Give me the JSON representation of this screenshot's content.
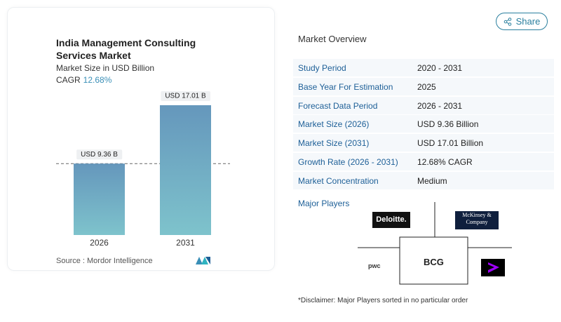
{
  "share_button": "Share",
  "chart_data": {
    "type": "bar",
    "title": "India Management Consulting Services Market",
    "subtitle": "Market Size in USD Billion",
    "cagr_label": "CAGR",
    "cagr_value": "12.68%",
    "categories": [
      "2026",
      "2031"
    ],
    "values": [
      9.36,
      17.01
    ],
    "value_labels": [
      "USD 9.36 B",
      "USD 17.01 B"
    ],
    "source": "Source : Mordor Intelligence"
  },
  "overview": {
    "title": "Market Overview",
    "rows": [
      [
        "Study Period",
        "2020 - 2031"
      ],
      [
        "Base Year For Estimation",
        "2025"
      ],
      [
        "Forecast Data Period",
        "2026 - 2031"
      ],
      [
        "Market Size (2026)",
        "USD 9.36 Billion"
      ],
      [
        "Market Size (2031)",
        "USD 17.01 Billion"
      ],
      [
        "Growth Rate (2026 - 2031)",
        "12.68% CAGR"
      ],
      [
        "Market Concentration",
        "Medium"
      ]
    ]
  },
  "major_players": {
    "title": "Major Players",
    "logos": [
      "Deloitte.",
      "McKinsey & Company",
      "pwc",
      "BCG"
    ]
  },
  "disclaimer": "*Disclaimer: Major Players sorted in no particular order"
}
